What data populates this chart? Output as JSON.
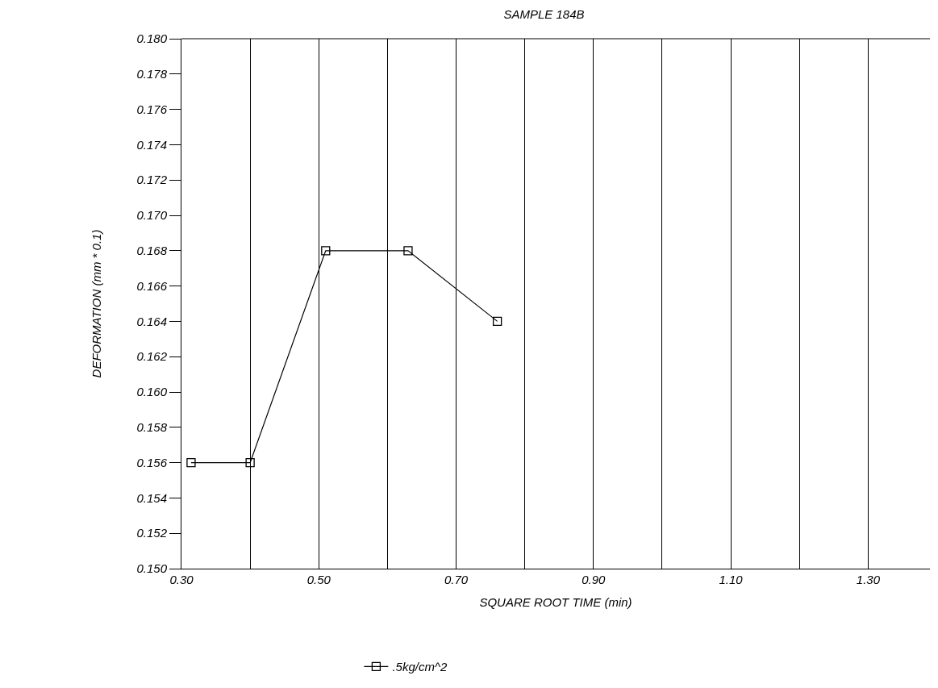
{
  "chart_data": {
    "type": "line",
    "title": "SAMPLE 184B",
    "xlabel": "SQUARE ROOT TIME (min)",
    "ylabel": "DEFORMATION (mm * 0.1)",
    "x": [
      0.314,
      0.4,
      0.51,
      0.63,
      0.76
    ],
    "series": [
      {
        "name": ".5kg/cm^2",
        "color": "#000000",
        "values": [
          0.156,
          0.156,
          0.168,
          0.168,
          0.164
        ]
      }
    ],
    "xlim": [
      0.3,
      1.39
    ],
    "xticks": [
      {
        "value": 0.3,
        "label": "0.30"
      },
      {
        "value": 0.4,
        "label": null
      },
      {
        "value": 0.5,
        "label": "0.50"
      },
      {
        "value": 0.6,
        "label": null
      },
      {
        "value": 0.7,
        "label": "0.70"
      },
      {
        "value": 0.8,
        "label": null
      },
      {
        "value": 0.9,
        "label": "0.90"
      },
      {
        "value": 1.0,
        "label": null
      },
      {
        "value": 1.1,
        "label": "1.10"
      },
      {
        "value": 1.2,
        "label": null
      },
      {
        "value": 1.3,
        "label": "1.30"
      }
    ],
    "ylim": [
      0.15,
      0.18
    ],
    "yticks": [
      {
        "value": 0.15,
        "label": "0.150"
      },
      {
        "value": 0.152,
        "label": "0.152"
      },
      {
        "value": 0.154,
        "label": "0.154"
      },
      {
        "value": 0.156,
        "label": "0.156"
      },
      {
        "value": 0.158,
        "label": "0.158"
      },
      {
        "value": 0.16,
        "label": "0.160"
      },
      {
        "value": 0.162,
        "label": "0.162"
      },
      {
        "value": 0.164,
        "label": "0.164"
      },
      {
        "value": 0.166,
        "label": "0.166"
      },
      {
        "value": 0.168,
        "label": "0.168"
      },
      {
        "value": 0.17,
        "label": "0.170"
      },
      {
        "value": 0.172,
        "label": "0.172"
      },
      {
        "value": 0.174,
        "label": "0.174"
      },
      {
        "value": 0.176,
        "label": "0.176"
      },
      {
        "value": 0.178,
        "label": "0.178"
      },
      {
        "value": 0.18,
        "label": "0.180"
      }
    ],
    "grid": "x",
    "legend": "bottom",
    "marker": "square",
    "line_style": "solid"
  }
}
